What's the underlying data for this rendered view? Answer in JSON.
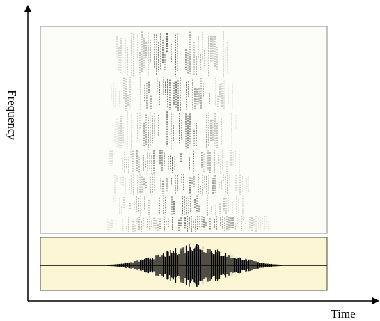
{
  "axes": {
    "y_label": "Frequency",
    "x_label": "Time"
  }
}
